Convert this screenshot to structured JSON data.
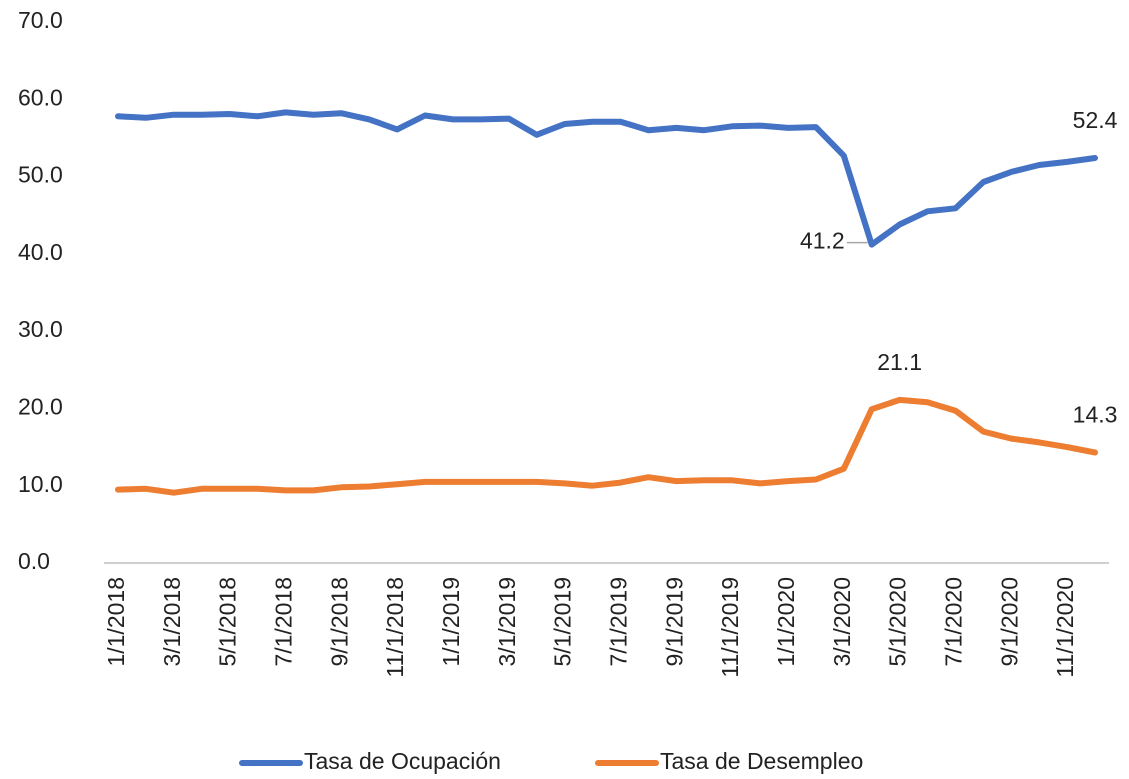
{
  "chart_data": {
    "type": "line",
    "categories": [
      "1/1/2018",
      null,
      "3/1/2018",
      null,
      "5/1/2018",
      null,
      "7/1/2018",
      null,
      "9/1/2018",
      null,
      "11/1/2018",
      null,
      "1/1/2019",
      null,
      "3/1/2019",
      null,
      "5/1/2019",
      null,
      "7/1/2019",
      null,
      "9/1/2019",
      null,
      "11/1/2019",
      null,
      "1/1/2020",
      null,
      "3/1/2020",
      null,
      "5/1/2020",
      null,
      "7/1/2020",
      null,
      "9/1/2020",
      null,
      "11/1/2020",
      null
    ],
    "series": [
      {
        "name": "Tasa de Ocupación",
        "color": "#4472c4",
        "values": [
          57.8,
          57.6,
          58.0,
          58.0,
          58.1,
          57.8,
          58.3,
          58.0,
          58.2,
          57.4,
          56.1,
          57.9,
          57.4,
          57.4,
          57.5,
          55.4,
          56.8,
          57.1,
          57.1,
          56.0,
          56.3,
          56.0,
          56.5,
          56.6,
          56.3,
          56.4,
          52.7,
          41.2,
          43.8,
          45.5,
          45.9,
          49.3,
          50.6,
          51.5,
          51.9,
          52.4
        ],
        "value_labels": [
          null,
          null,
          null,
          null,
          null,
          null,
          null,
          null,
          null,
          null,
          null,
          null,
          null,
          null,
          null,
          null,
          null,
          null,
          null,
          null,
          null,
          null,
          null,
          null,
          null,
          null,
          null,
          "41.2",
          null,
          null,
          null,
          null,
          null,
          null,
          null,
          "52.4"
        ]
      },
      {
        "name": "Tasa de Desempleo",
        "color": "#ed7d31",
        "values": [
          9.5,
          9.6,
          9.1,
          9.6,
          9.6,
          9.6,
          9.4,
          9.4,
          9.8,
          9.9,
          10.2,
          10.5,
          10.5,
          10.5,
          10.5,
          10.5,
          10.3,
          10.0,
          10.4,
          11.1,
          10.6,
          10.7,
          10.7,
          10.3,
          10.6,
          10.8,
          12.2,
          19.9,
          21.1,
          20.8,
          19.7,
          17.0,
          16.1,
          15.6,
          15.0,
          14.3
        ],
        "value_labels": [
          null,
          null,
          null,
          null,
          null,
          null,
          null,
          null,
          null,
          null,
          null,
          null,
          null,
          null,
          null,
          null,
          null,
          null,
          null,
          null,
          null,
          null,
          null,
          null,
          null,
          null,
          null,
          null,
          "21.1",
          null,
          null,
          null,
          null,
          null,
          null,
          "14.3"
        ]
      }
    ],
    "ylim": [
      0,
      70
    ],
    "yticks": [
      {
        "value": 0,
        "label": "0.0"
      },
      {
        "value": 10,
        "label": "10.0"
      },
      {
        "value": 20,
        "label": "20.0"
      },
      {
        "value": 30,
        "label": "30.0"
      },
      {
        "value": 40,
        "label": "40.0"
      },
      {
        "value": 50,
        "label": "50.0"
      },
      {
        "value": 60,
        "label": "60.0"
      },
      {
        "value": 70,
        "label": "70.0"
      }
    ],
    "grid": false,
    "legend": "bottom"
  }
}
